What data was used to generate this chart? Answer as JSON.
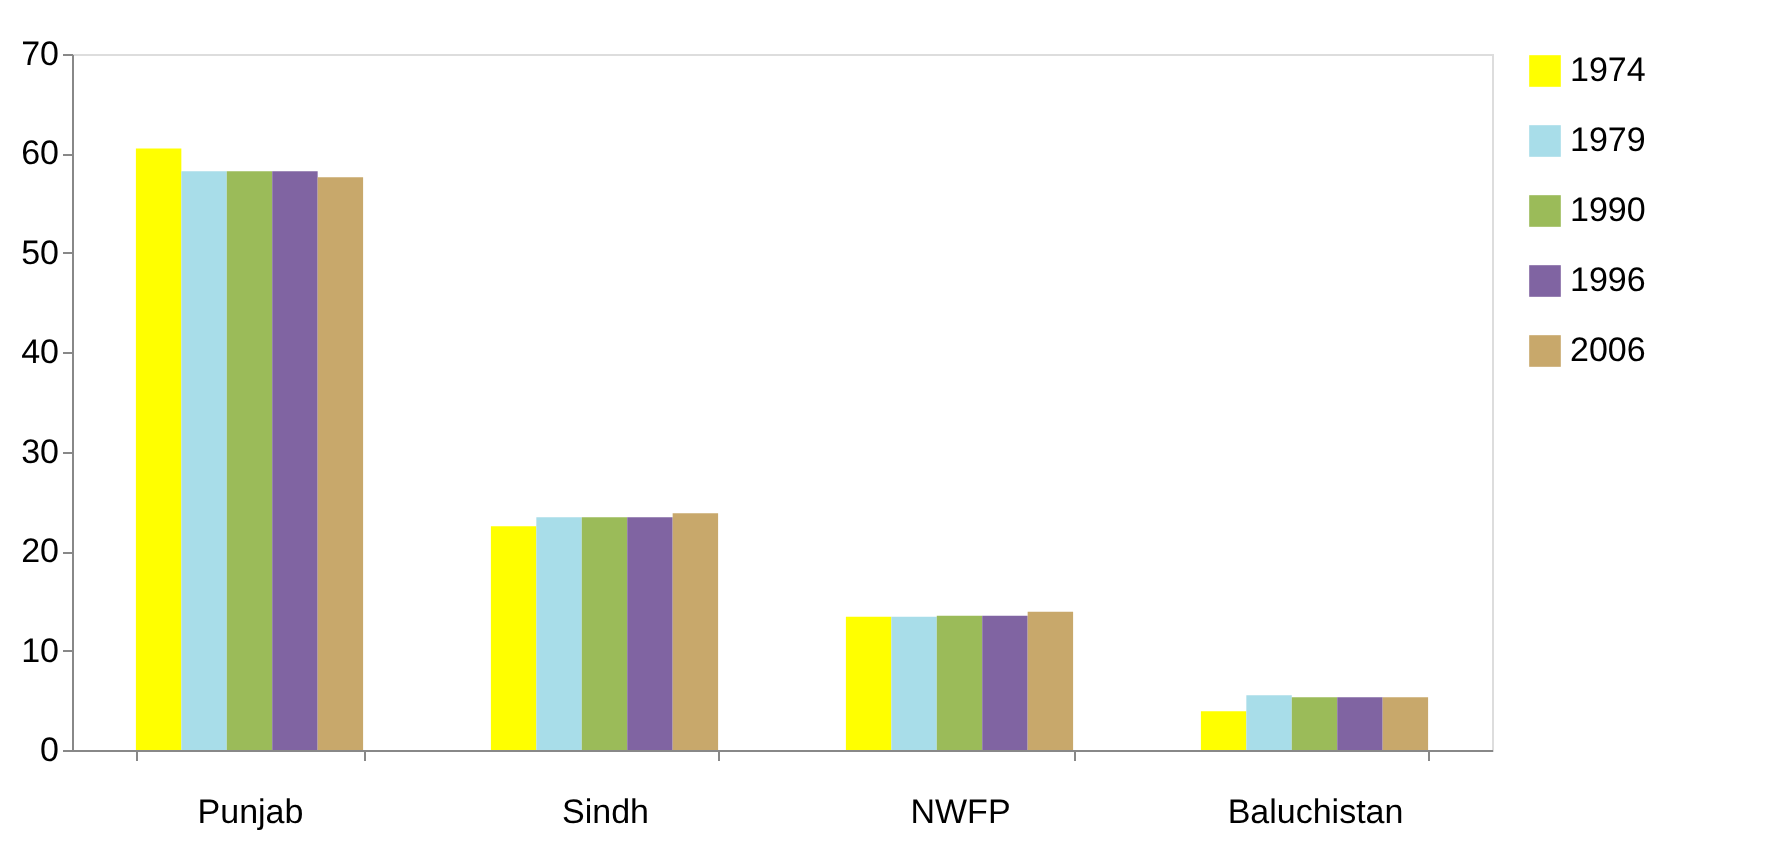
{
  "chart_data": {
    "type": "bar",
    "categories": [
      "Punjab",
      "Sindh",
      "NWFP",
      "Baluchistan"
    ],
    "series": [
      {
        "name": "1974",
        "color": "#ffff00",
        "values": [
          60.5,
          22.5,
          13.4,
          3.9
        ]
      },
      {
        "name": "1979",
        "color": "#a8dde9",
        "values": [
          58.2,
          23.4,
          13.4,
          5.5
        ]
      },
      {
        "name": "1990",
        "color": "#9bbb59",
        "values": [
          58.2,
          23.4,
          13.5,
          5.3
        ]
      },
      {
        "name": "1996",
        "color": "#8064a2",
        "values": [
          58.2,
          23.4,
          13.5,
          5.3
        ]
      },
      {
        "name": "2006",
        "color": "#c8a86b",
        "values": [
          57.6,
          23.8,
          13.9,
          5.3
        ]
      }
    ],
    "ylim": [
      0,
      70
    ],
    "yticks": [
      0,
      10,
      20,
      30,
      40,
      50,
      60,
      70
    ],
    "grid": false,
    "legend": "right"
  }
}
